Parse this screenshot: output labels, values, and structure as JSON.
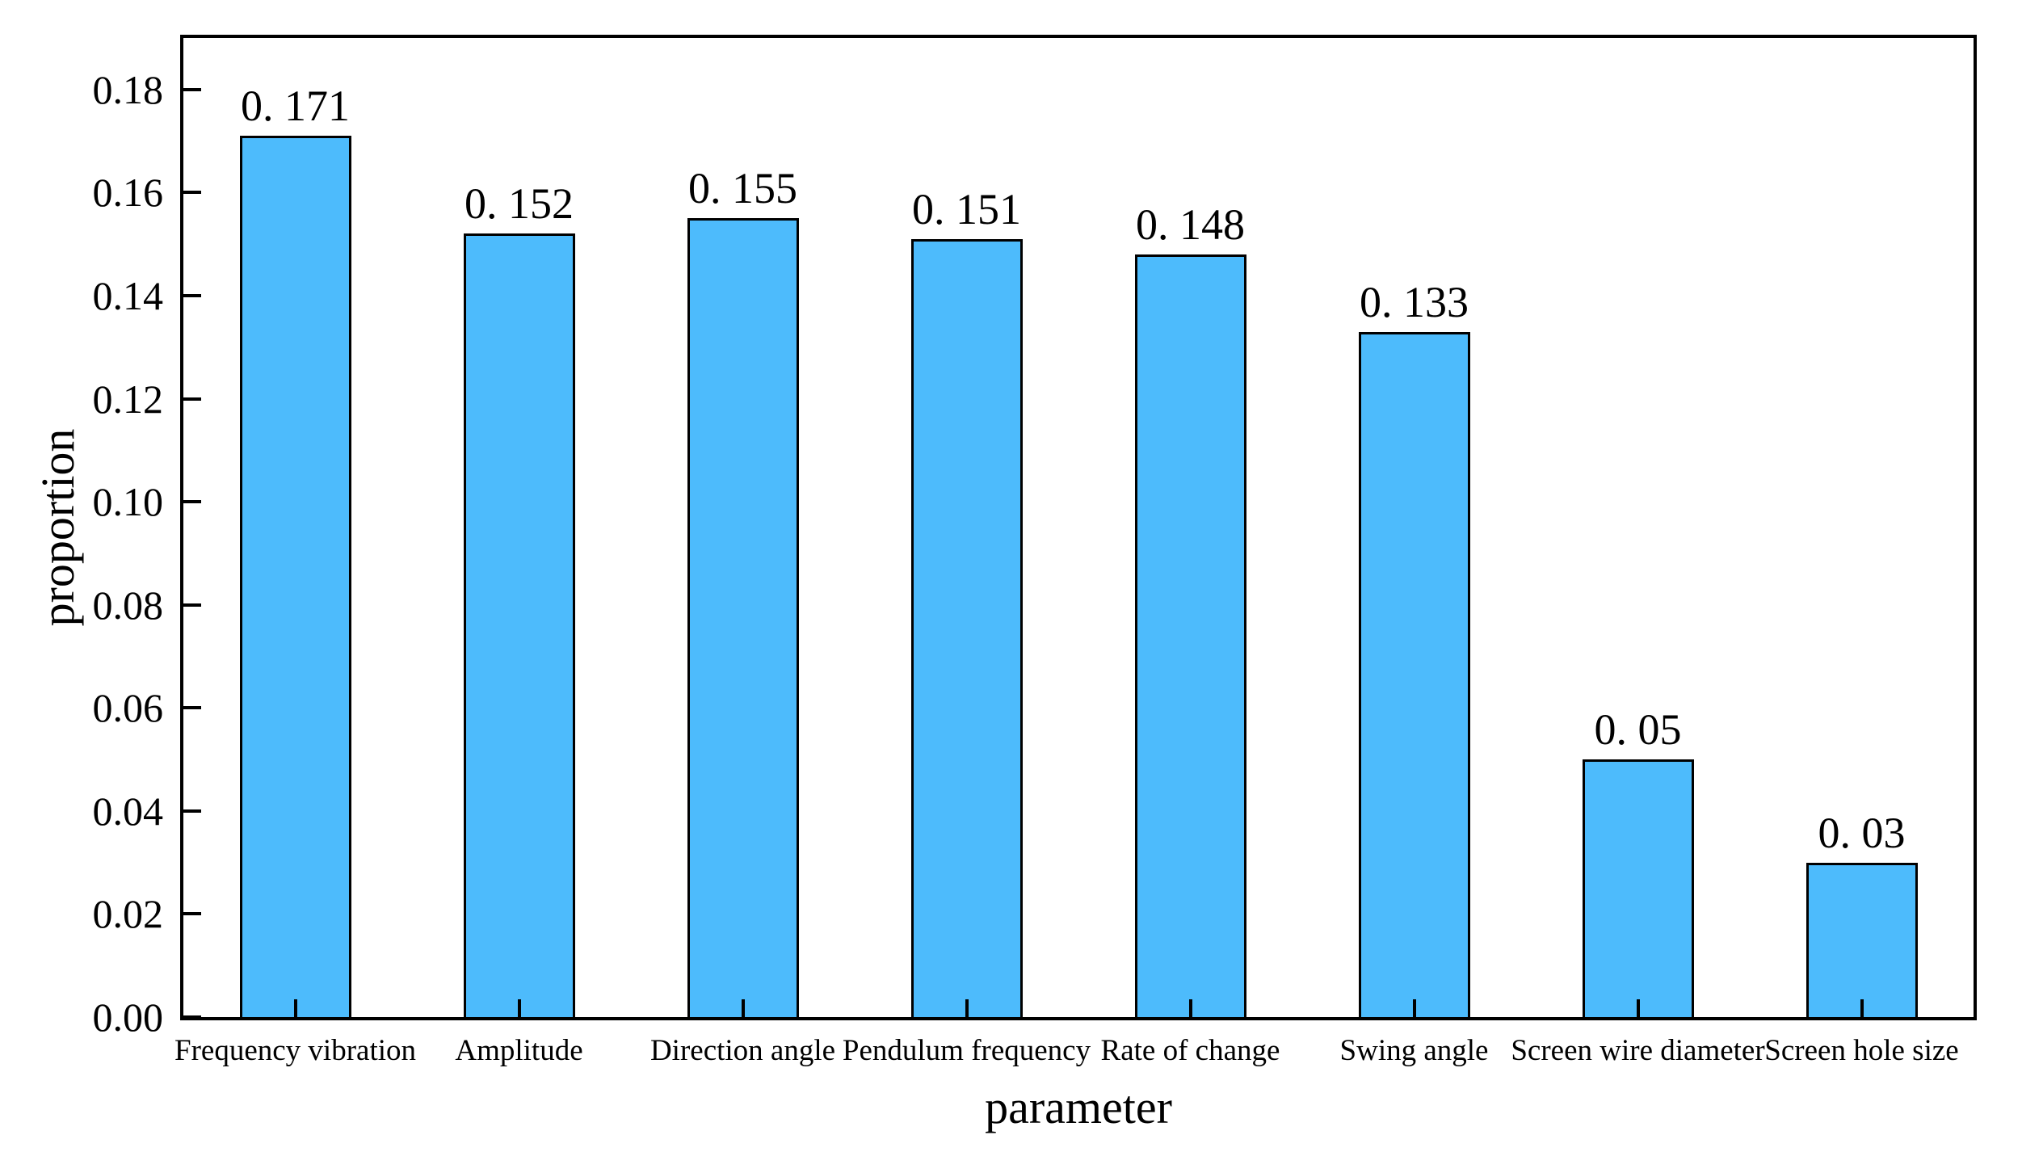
{
  "chart_data": {
    "type": "bar",
    "title": "",
    "xlabel": "parameter",
    "ylabel": "proportion",
    "categories": [
      "Frequency vibration",
      "Amplitude",
      "Direction angle",
      "Pendulum frequency",
      "Rate of change",
      "Swing angle",
      "Screen wire diameter",
      "Screen hole size"
    ],
    "values": [
      0.171,
      0.152,
      0.155,
      0.151,
      0.148,
      0.133,
      0.05,
      0.03
    ],
    "bar_value_labels": [
      "0. 171",
      "0. 152",
      "0. 155",
      "0. 151",
      "0. 148",
      "0. 133",
      "0. 05",
      "0. 03"
    ],
    "ylim": [
      0,
      0.19
    ],
    "ytick_step": 0.02,
    "ytick_labels": [
      "0.00",
      "0.02",
      "0.04",
      "0.06",
      "0.08",
      "0.10",
      "0.12",
      "0.14",
      "0.16",
      "0.18"
    ],
    "ytick_values": [
      0.0,
      0.02,
      0.04,
      0.06,
      0.08,
      0.1,
      0.12,
      0.14,
      0.16,
      0.18
    ],
    "grid": false,
    "legend": null,
    "bar_color": "#4DBBFC",
    "bar_edge_color": "#000000",
    "axis_color": "#000000",
    "background_color": "#FFFFFF"
  }
}
